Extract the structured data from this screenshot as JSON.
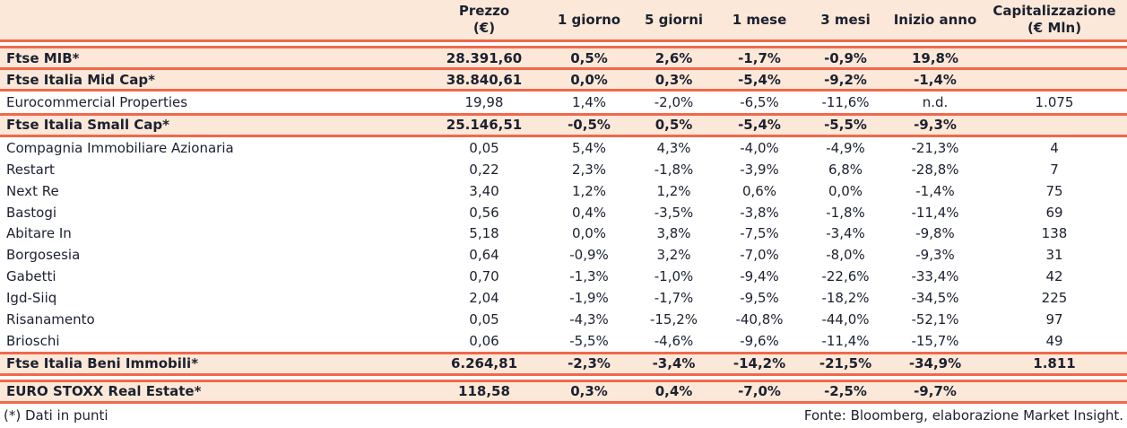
{
  "colors": {
    "accent": "#F2684C",
    "highlight_row_bg": "#FCE8D8",
    "text": "#1C2130",
    "plain_row_bg": "#FFFFFF"
  },
  "table": {
    "columns": [
      {
        "key": "name",
        "label": ""
      },
      {
        "key": "prezzo",
        "label": "Prezzo",
        "sublabel": "(€)"
      },
      {
        "key": "g1",
        "label": "1 giorno"
      },
      {
        "key": "g5",
        "label": "5 giorni"
      },
      {
        "key": "m1",
        "label": "1 mese"
      },
      {
        "key": "m3",
        "label": "3 mesi"
      },
      {
        "key": "ytd",
        "label": "Inizio anno"
      },
      {
        "key": "cap",
        "label": "Capitalizzazione",
        "sublabel": "(€ Mln)"
      }
    ],
    "rows": [
      {
        "name": "Ftse MIB*",
        "values": [
          "28.391,60",
          "0,5%",
          "2,6%",
          "-1,7%",
          "-0,9%",
          "19,8%",
          ""
        ],
        "highlight": true
      },
      {
        "name": "Ftse Italia Mid Cap*",
        "values": [
          "38.840,61",
          "0,0%",
          "0,3%",
          "-5,4%",
          "-9,2%",
          "-1,4%",
          ""
        ],
        "highlight": true
      },
      {
        "name": "Eurocommercial Properties",
        "values": [
          "19,98",
          "1,4%",
          "-2,0%",
          "-6,5%",
          "-11,6%",
          "n.d.",
          "1.075"
        ],
        "highlight": false
      },
      {
        "name": "Ftse Italia Small Cap*",
        "values": [
          "25.146,51",
          "-0,5%",
          "0,5%",
          "-5,4%",
          "-5,5%",
          "-9,3%",
          ""
        ],
        "highlight": true
      },
      {
        "name": "Compagnia Immobiliare Azionaria",
        "values": [
          "0,05",
          "5,4%",
          "4,3%",
          "-4,0%",
          "-4,9%",
          "-21,3%",
          "4"
        ],
        "highlight": false
      },
      {
        "name": "Restart",
        "values": [
          "0,22",
          "2,3%",
          "-1,8%",
          "-3,9%",
          "6,8%",
          "-28,8%",
          "7"
        ],
        "highlight": false
      },
      {
        "name": "Next Re",
        "values": [
          "3,40",
          "1,2%",
          "1,2%",
          "0,6%",
          "0,0%",
          "-1,4%",
          "75"
        ],
        "highlight": false
      },
      {
        "name": "Bastogi",
        "values": [
          "0,56",
          "0,4%",
          "-3,5%",
          "-3,8%",
          "-1,8%",
          "-11,4%",
          "69"
        ],
        "highlight": false
      },
      {
        "name": "Abitare In",
        "values": [
          "5,18",
          "0,0%",
          "3,8%",
          "-7,5%",
          "-3,4%",
          "-9,8%",
          "138"
        ],
        "highlight": false
      },
      {
        "name": "Borgosesia",
        "values": [
          "0,64",
          "-0,9%",
          "3,2%",
          "-7,0%",
          "-8,0%",
          "-9,3%",
          "31"
        ],
        "highlight": false
      },
      {
        "name": "Gabetti",
        "values": [
          "0,70",
          "-1,3%",
          "-1,0%",
          "-9,4%",
          "-22,6%",
          "-33,4%",
          "42"
        ],
        "highlight": false
      },
      {
        "name": "Igd-Siiq",
        "values": [
          "2,04",
          "-1,9%",
          "-1,7%",
          "-9,5%",
          "-18,2%",
          "-34,5%",
          "225"
        ],
        "highlight": false
      },
      {
        "name": "Risanamento",
        "values": [
          "0,05",
          "-4,3%",
          "-15,2%",
          "-40,8%",
          "-44,0%",
          "-52,1%",
          "97"
        ],
        "highlight": false
      },
      {
        "name": "Brioschi",
        "values": [
          "0,06",
          "-5,5%",
          "-4,6%",
          "-9,6%",
          "-11,4%",
          "-15,7%",
          "49"
        ],
        "highlight": false
      },
      {
        "name": "Ftse Italia Beni Immobili*",
        "values": [
          "6.264,81",
          "-2,3%",
          "-3,4%",
          "-14,2%",
          "-21,5%",
          "-34,9%",
          "1.811"
        ],
        "highlight": true
      },
      {
        "name": "EURO STOXX Real Estate*",
        "values": [
          "118,58",
          "0,3%",
          "0,4%",
          "-7,0%",
          "-2,5%",
          "-9,7%",
          ""
        ],
        "highlight": true
      }
    ]
  },
  "footer": {
    "left": "(*) Dati in punti",
    "right": "Fonte: Bloomberg, elaborazione Market Insight."
  }
}
